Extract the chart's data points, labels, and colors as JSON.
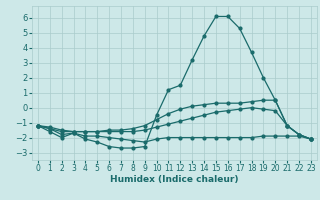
{
  "xlabel": "Humidex (Indice chaleur)",
  "background_color": "#cde8e8",
  "grid_color": "#aacccc",
  "line_color": "#1a6b6b",
  "xlim": [
    -0.5,
    23.5
  ],
  "ylim": [
    -3.5,
    6.8
  ],
  "yticks": [
    -3,
    -2,
    -1,
    0,
    1,
    2,
    3,
    4,
    5,
    6
  ],
  "xticks": [
    0,
    1,
    2,
    3,
    4,
    5,
    6,
    7,
    8,
    9,
    10,
    11,
    12,
    13,
    14,
    15,
    16,
    17,
    18,
    19,
    20,
    21,
    22,
    23
  ],
  "curves": [
    {
      "x": [
        0,
        1,
        2,
        3,
        4,
        5,
        6,
        7,
        8,
        9,
        10,
        11,
        12,
        13,
        14,
        15,
        16,
        17,
        18,
        19,
        20,
        21,
        22,
        23
      ],
      "y": [
        -1.2,
        -1.6,
        -2.0,
        -1.7,
        -2.1,
        -2.3,
        -2.6,
        -2.7,
        -2.7,
        -2.6,
        -0.5,
        1.2,
        1.5,
        3.2,
        4.8,
        6.1,
        6.1,
        5.3,
        3.7,
        2.0,
        0.5,
        -1.2,
        -1.8,
        -2.1
      ]
    },
    {
      "x": [
        0,
        1,
        2,
        3,
        4,
        5,
        6,
        7,
        8,
        9,
        10,
        11,
        12,
        13,
        14,
        15,
        16,
        17,
        18,
        19,
        20,
        21,
        22,
        23
      ],
      "y": [
        -1.2,
        -1.3,
        -1.5,
        -1.6,
        -1.6,
        -1.6,
        -1.5,
        -1.5,
        -1.4,
        -1.2,
        -0.8,
        -0.4,
        -0.1,
        0.1,
        0.2,
        0.3,
        0.3,
        0.3,
        0.4,
        0.5,
        0.5,
        -1.2,
        -1.8,
        -2.1
      ]
    },
    {
      "x": [
        0,
        1,
        2,
        3,
        4,
        5,
        6,
        7,
        8,
        9,
        10,
        11,
        12,
        13,
        14,
        15,
        16,
        17,
        18,
        19,
        20,
        21,
        22,
        23
      ],
      "y": [
        -1.2,
        -1.4,
        -1.6,
        -1.6,
        -1.6,
        -1.6,
        -1.6,
        -1.6,
        -1.6,
        -1.5,
        -1.3,
        -1.1,
        -0.9,
        -0.7,
        -0.5,
        -0.3,
        -0.2,
        -0.1,
        0.0,
        -0.1,
        -0.2,
        -1.2,
        -1.8,
        -2.1
      ]
    },
    {
      "x": [
        0,
        1,
        2,
        3,
        4,
        5,
        6,
        7,
        8,
        9,
        10,
        11,
        12,
        13,
        14,
        15,
        16,
        17,
        18,
        19,
        20,
        21,
        22,
        23
      ],
      "y": [
        -1.2,
        -1.4,
        -1.8,
        -1.7,
        -1.9,
        -1.9,
        -2.0,
        -2.1,
        -2.2,
        -2.3,
        -2.1,
        -2.0,
        -2.0,
        -2.0,
        -2.0,
        -2.0,
        -2.0,
        -2.0,
        -2.0,
        -1.9,
        -1.9,
        -1.9,
        -1.9,
        -2.1
      ]
    }
  ]
}
